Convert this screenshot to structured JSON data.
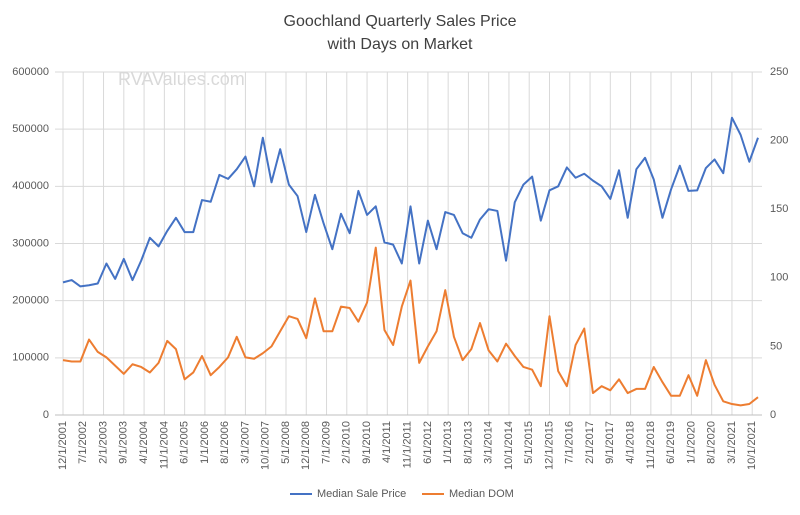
{
  "chart_data": {
    "type": "line",
    "title": "Goochland Quarterly Sales Price",
    "subtitle": "with Days on Market",
    "watermark": "RVAValues.com",
    "x": [
      "12/1/2001",
      "3/1/2002",
      "6/1/2002",
      "9/1/2002",
      "12/1/2002",
      "3/1/2003",
      "6/1/2003",
      "9/1/2003",
      "12/1/2003",
      "3/1/2004",
      "6/1/2004",
      "9/1/2004",
      "12/1/2004",
      "3/1/2005",
      "6/1/2005",
      "9/1/2005",
      "12/1/2005",
      "3/1/2006",
      "6/1/2006",
      "9/1/2006",
      "12/1/2006",
      "3/1/2007",
      "6/1/2007",
      "9/1/2007",
      "12/1/2007",
      "3/1/2008",
      "6/1/2008",
      "9/1/2008",
      "12/1/2008",
      "3/1/2009",
      "6/1/2009",
      "9/1/2009",
      "12/1/2009",
      "3/1/2010",
      "6/1/2010",
      "9/1/2010",
      "12/1/2010",
      "3/1/2011",
      "6/1/2011",
      "9/1/2011",
      "12/1/2011",
      "3/1/2012",
      "6/1/2012",
      "9/1/2012",
      "12/1/2012",
      "3/1/2013",
      "6/1/2013",
      "9/1/2013",
      "12/1/2013",
      "3/1/2014",
      "6/1/2014",
      "9/1/2014",
      "12/1/2014",
      "3/1/2015",
      "6/1/2015",
      "9/1/2015",
      "12/1/2015",
      "3/1/2016",
      "6/1/2016",
      "9/1/2016",
      "12/1/2016",
      "3/1/2017",
      "6/1/2017",
      "9/1/2017",
      "12/1/2017",
      "3/1/2018",
      "6/1/2018",
      "9/1/2018",
      "12/1/2018",
      "3/1/2019",
      "6/1/2019",
      "9/1/2019",
      "12/1/2019",
      "3/1/2020",
      "6/1/2020",
      "9/1/2020",
      "12/1/2020",
      "3/1/2021",
      "6/1/2021",
      "9/1/2021",
      "12/1/2021"
    ],
    "xticks": [
      "12/1/2001",
      "7/1/2002",
      "2/1/2003",
      "9/1/2003",
      "4/1/2004",
      "11/1/2004",
      "6/1/2005",
      "1/1/2006",
      "8/1/2006",
      "3/1/2007",
      "10/1/2007",
      "5/1/2008",
      "12/1/2008",
      "7/1/2009",
      "2/1/2010",
      "9/1/2010",
      "4/1/2011",
      "11/1/2011",
      "6/1/2012",
      "1/1/2013",
      "8/1/2013",
      "3/1/2014",
      "10/1/2014",
      "5/1/2015",
      "12/1/2015",
      "7/1/2016",
      "2/1/2017",
      "9/1/2017",
      "4/1/2018",
      "11/1/2018",
      "6/1/2019",
      "1/1/2020",
      "8/1/2020",
      "3/1/2021",
      "10/1/2021"
    ],
    "series": [
      {
        "name": "Median Sale Price",
        "color": "#4472c4",
        "axis": "y",
        "values": [
          232000,
          236000,
          225000,
          227000,
          230000,
          265000,
          238000,
          273000,
          236000,
          270000,
          310000,
          295000,
          322000,
          345000,
          320000,
          320000,
          376000,
          373000,
          420000,
          413000,
          430000,
          452000,
          400000,
          485000,
          407000,
          465000,
          403000,
          383000,
          320000,
          385000,
          335000,
          290000,
          352000,
          318000,
          392000,
          350000,
          365000,
          302000,
          298000,
          265000,
          365000,
          265000,
          340000,
          290000,
          355000,
          350000,
          318000,
          310000,
          342000,
          360000,
          357000,
          270000,
          372000,
          403000,
          417000,
          340000,
          393000,
          400000,
          433000,
          415000,
          422000,
          410000,
          400000,
          378000,
          428000,
          345000,
          430000,
          450000,
          412000,
          345000,
          395000,
          436000,
          392000,
          393000,
          432000,
          447000,
          423000,
          520000,
          490000,
          443000,
          485000
        ]
      },
      {
        "name": "Median DOM",
        "color": "#ed7d31",
        "axis": "y2",
        "values": [
          40,
          39,
          39,
          55,
          46,
          42,
          36,
          30,
          37,
          35,
          31,
          38,
          54,
          48,
          26,
          31,
          43,
          29,
          35,
          42,
          57,
          42,
          41,
          45,
          50,
          61,
          72,
          70,
          56,
          85,
          61,
          61,
          79,
          78,
          68,
          82,
          122,
          62,
          51,
          79,
          98,
          38,
          50,
          61,
          91,
          57,
          40,
          48,
          67,
          47,
          39,
          52,
          43,
          35,
          33,
          21,
          72,
          32,
          21,
          51,
          63,
          16,
          21,
          18,
          26,
          16,
          19,
          19,
          35,
          24,
          14,
          14,
          29,
          14,
          40,
          22,
          10,
          8,
          7,
          8,
          13
        ]
      }
    ],
    "ylim": [
      0,
      600000
    ],
    "yticks": [
      0,
      100000,
      200000,
      300000,
      400000,
      500000,
      600000
    ],
    "y2lim": [
      0,
      250
    ],
    "y2ticks": [
      0,
      50,
      100,
      150,
      200,
      250
    ],
    "grid": true,
    "legend": "bottom"
  }
}
